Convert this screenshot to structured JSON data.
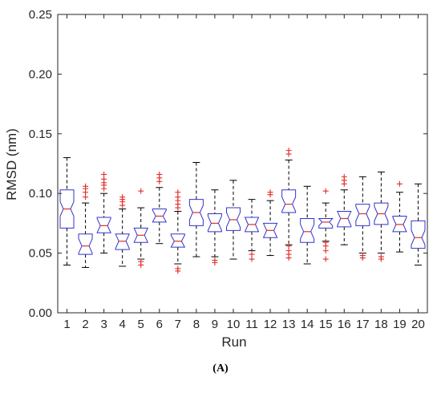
{
  "panel_label": "(A)",
  "chart_data": {
    "type": "boxplot",
    "notched": true,
    "xlabel": "Run",
    "ylabel": "RMSD (nm)",
    "ylim": [
      0,
      0.25
    ],
    "yticks": [
      "0.00",
      "0.05",
      "0.10",
      "0.15",
      "0.20",
      "0.25"
    ],
    "categories": [
      "1",
      "2",
      "3",
      "4",
      "5",
      "6",
      "7",
      "8",
      "9",
      "10",
      "11",
      "12",
      "13",
      "14",
      "15",
      "16",
      "17",
      "18",
      "19",
      "20"
    ],
    "colors": {
      "box": "#3333cc",
      "median": "#e0302a",
      "whisker": "#000000",
      "outlier": "#e0302a",
      "axis": "#262626"
    },
    "boxes": [
      {
        "run": "1",
        "whisker_low": 0.04,
        "q1": 0.071,
        "median": 0.087,
        "q3": 0.103,
        "whisker_high": 0.13,
        "outliers": []
      },
      {
        "run": "2",
        "whisker_low": 0.038,
        "q1": 0.049,
        "median": 0.056,
        "q3": 0.066,
        "whisker_high": 0.092,
        "outliers": [
          0.097,
          0.101,
          0.104,
          0.106
        ]
      },
      {
        "run": "3",
        "whisker_low": 0.05,
        "q1": 0.067,
        "median": 0.073,
        "q3": 0.08,
        "whisker_high": 0.1,
        "outliers": [
          0.104,
          0.107,
          0.109,
          0.112,
          0.116
        ]
      },
      {
        "run": "4",
        "whisker_low": 0.039,
        "q1": 0.053,
        "median": 0.06,
        "q3": 0.066,
        "whisker_high": 0.087,
        "outliers": [
          0.09,
          0.093,
          0.095,
          0.097
        ]
      },
      {
        "run": "5",
        "whisker_low": 0.045,
        "q1": 0.059,
        "median": 0.065,
        "q3": 0.071,
        "whisker_high": 0.088,
        "outliers": [
          0.04,
          0.043,
          0.102
        ]
      },
      {
        "run": "6",
        "whisker_low": 0.058,
        "q1": 0.076,
        "median": 0.081,
        "q3": 0.087,
        "whisker_high": 0.105,
        "outliers": [
          0.11,
          0.113,
          0.116
        ]
      },
      {
        "run": "7",
        "whisker_low": 0.041,
        "q1": 0.055,
        "median": 0.06,
        "q3": 0.066,
        "whisker_high": 0.085,
        "outliers": [
          0.035,
          0.037,
          0.088,
          0.091,
          0.094,
          0.097,
          0.101
        ]
      },
      {
        "run": "8",
        "whisker_low": 0.047,
        "q1": 0.073,
        "median": 0.084,
        "q3": 0.095,
        "whisker_high": 0.126,
        "outliers": []
      },
      {
        "run": "9",
        "whisker_low": 0.047,
        "q1": 0.068,
        "median": 0.075,
        "q3": 0.083,
        "whisker_high": 0.103,
        "outliers": [
          0.042,
          0.044
        ]
      },
      {
        "run": "10",
        "whisker_low": 0.045,
        "q1": 0.069,
        "median": 0.078,
        "q3": 0.088,
        "whisker_high": 0.111,
        "outliers": []
      },
      {
        "run": "11",
        "whisker_low": 0.052,
        "q1": 0.068,
        "median": 0.074,
        "q3": 0.08,
        "whisker_high": 0.095,
        "outliers": [
          0.045,
          0.049
        ]
      },
      {
        "run": "12",
        "whisker_low": 0.048,
        "q1": 0.063,
        "median": 0.069,
        "q3": 0.075,
        "whisker_high": 0.094,
        "outliers": [
          0.099,
          0.101
        ]
      },
      {
        "run": "13",
        "whisker_low": 0.057,
        "q1": 0.084,
        "median": 0.091,
        "q3": 0.103,
        "whisker_high": 0.128,
        "outliers": [
          0.046,
          0.049,
          0.052,
          0.056,
          0.133,
          0.136
        ]
      },
      {
        "run": "14",
        "whisker_low": 0.041,
        "q1": 0.059,
        "median": 0.068,
        "q3": 0.079,
        "whisker_high": 0.106,
        "outliers": []
      },
      {
        "run": "15",
        "whisker_low": 0.06,
        "q1": 0.071,
        "median": 0.076,
        "q3": 0.079,
        "whisker_high": 0.092,
        "outliers": [
          0.045,
          0.052,
          0.056,
          0.059,
          0.102
        ]
      },
      {
        "run": "16",
        "whisker_low": 0.057,
        "q1": 0.072,
        "median": 0.079,
        "q3": 0.085,
        "whisker_high": 0.103,
        "outliers": [
          0.108,
          0.111,
          0.114
        ]
      },
      {
        "run": "17",
        "whisker_low": 0.05,
        "q1": 0.073,
        "median": 0.083,
        "q3": 0.091,
        "whisker_high": 0.114,
        "outliers": [
          0.046,
          0.048
        ]
      },
      {
        "run": "18",
        "whisker_low": 0.05,
        "q1": 0.074,
        "median": 0.083,
        "q3": 0.092,
        "whisker_high": 0.118,
        "outliers": [
          0.045,
          0.047
        ]
      },
      {
        "run": "19",
        "whisker_low": 0.051,
        "q1": 0.068,
        "median": 0.074,
        "q3": 0.081,
        "whisker_high": 0.101,
        "outliers": [
          0.108
        ]
      },
      {
        "run": "20",
        "whisker_low": 0.04,
        "q1": 0.054,
        "median": 0.063,
        "q3": 0.077,
        "whisker_high": 0.108,
        "outliers": []
      }
    ]
  }
}
